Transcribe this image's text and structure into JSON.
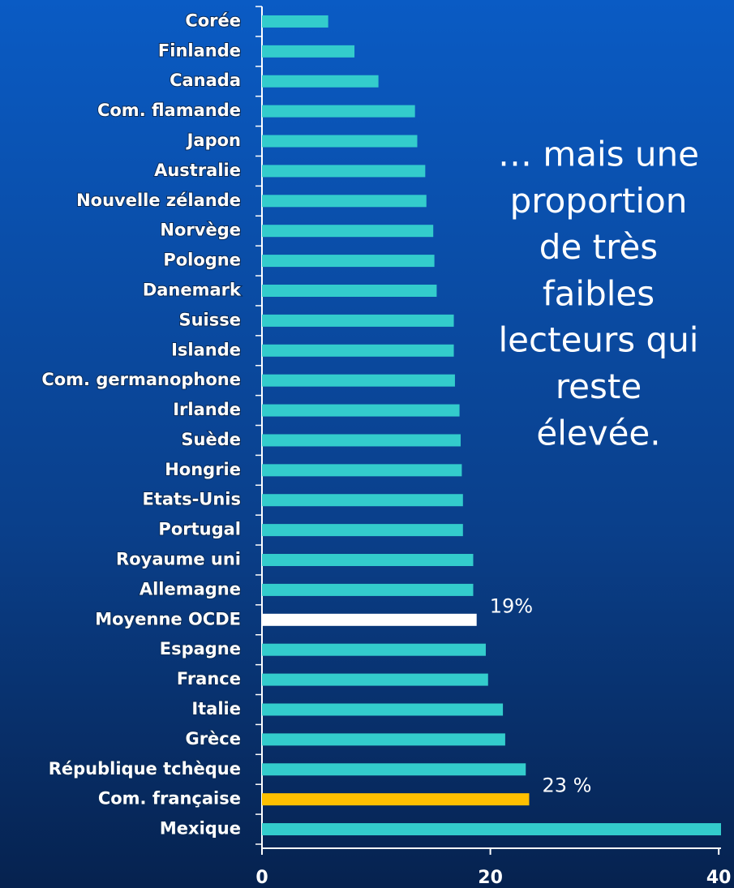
{
  "chart_data": {
    "type": "hbar",
    "categories": [
      "Corée",
      "Finlande",
      "Canada",
      "Com. flamande",
      "Japon",
      "Australie",
      "Nouvelle zélande",
      "Norvège",
      "Pologne",
      "Danemark",
      "Suisse",
      "Islande",
      "Com. germanophone",
      "Irlande",
      "Suède",
      "Hongrie",
      "Etats-Unis",
      "Portugal",
      "Royaume uni",
      "Allemagne",
      "Moyenne OCDE",
      "Espagne",
      "France",
      "Italie",
      "Grèce",
      "République tchèque",
      "Com. française",
      "Mexique"
    ],
    "values": [
      5.8,
      8.1,
      10.2,
      13.4,
      13.6,
      14.3,
      14.4,
      15.0,
      15.1,
      15.3,
      16.8,
      16.8,
      16.9,
      17.3,
      17.4,
      17.5,
      17.6,
      17.6,
      18.5,
      18.5,
      18.8,
      19.6,
      19.8,
      21.1,
      21.3,
      23.1,
      23.4,
      40.2
    ],
    "value_labels": [
      null,
      null,
      null,
      null,
      null,
      null,
      null,
      null,
      null,
      null,
      null,
      null,
      null,
      null,
      null,
      null,
      null,
      null,
      null,
      null,
      "19%",
      null,
      null,
      null,
      null,
      null,
      "23 %",
      null
    ],
    "colors": [
      "#33cccc",
      "#33cccc",
      "#33cccc",
      "#33cccc",
      "#33cccc",
      "#33cccc",
      "#33cccc",
      "#33cccc",
      "#33cccc",
      "#33cccc",
      "#33cccc",
      "#33cccc",
      "#33cccc",
      "#33cccc",
      "#33cccc",
      "#33cccc",
      "#33cccc",
      "#33cccc",
      "#33cccc",
      "#33cccc",
      "#ffffff",
      "#33cccc",
      "#33cccc",
      "#33cccc",
      "#33cccc",
      "#33cccc",
      "#ffc000",
      "#33cccc"
    ],
    "xlim": [
      0,
      40.2
    ],
    "xticks": [
      0,
      20,
      40
    ],
    "annotation": [
      "… mais une",
      "proportion",
      "de très",
      "faibles",
      "lecteurs qui",
      "reste",
      "élevée."
    ]
  }
}
